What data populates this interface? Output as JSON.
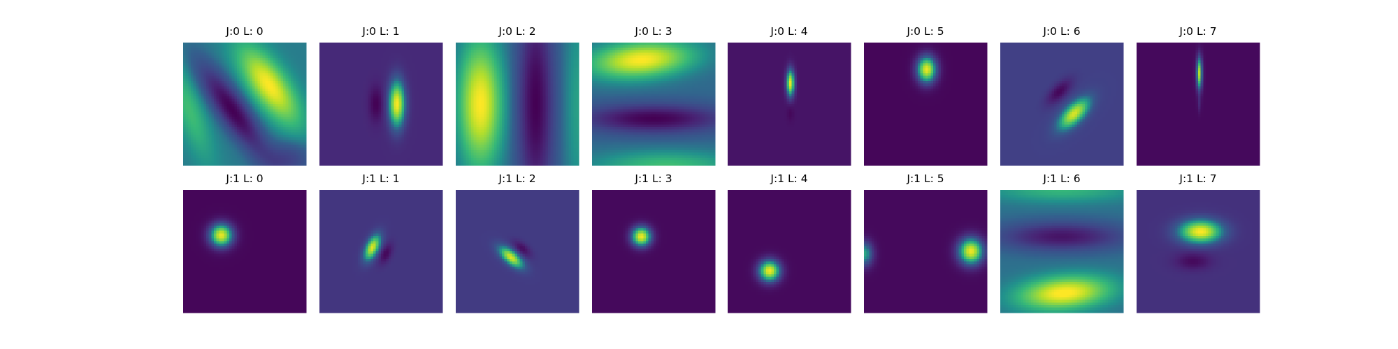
{
  "chart_data": {
    "type": "heatmap",
    "colormap": "viridis",
    "grid": {
      "rows": 2,
      "cols": 8
    },
    "panels": [
      {
        "title": "J:0 L: 0",
        "bg": 0.45,
        "blobs": [
          {
            "cx": 0.7,
            "cy": 0.35,
            "sx": 0.1,
            "sy": 0.25,
            "angle": -35,
            "amp": 0.55
          },
          {
            "cx": 0.4,
            "cy": 0.55,
            "sx": 0.08,
            "sy": 0.3,
            "angle": -35,
            "amp": -0.45
          },
          {
            "cx": 0.05,
            "cy": 0.55,
            "sx": 0.08,
            "sy": 0.3,
            "angle": -20,
            "amp": 0.2
          },
          {
            "cx": 0.85,
            "cy": 0.95,
            "sx": 0.15,
            "sy": 0.1,
            "angle": 0,
            "amp": -0.2
          }
        ]
      },
      {
        "title": "J:0 L: 1",
        "bg": 0.15,
        "blobs": [
          {
            "cx": 0.63,
            "cy": 0.5,
            "sx": 0.045,
            "sy": 0.13,
            "angle": 0,
            "amp": 0.85
          },
          {
            "cx": 0.46,
            "cy": 0.5,
            "sx": 0.04,
            "sy": 0.1,
            "angle": 0,
            "amp": -0.15
          }
        ]
      },
      {
        "title": "J:0 L: 2",
        "bg": 0.4,
        "blobs": [
          {
            "cx": 0.2,
            "cy": 0.5,
            "sx": 0.12,
            "sy": 0.35,
            "angle": 0,
            "amp": 0.6
          },
          {
            "cx": 0.65,
            "cy": 0.5,
            "sx": 0.1,
            "sy": 0.6,
            "angle": 0,
            "amp": -0.4
          },
          {
            "cx": 1.0,
            "cy": 0.5,
            "sx": 0.08,
            "sy": 0.6,
            "angle": 0,
            "amp": 0.15
          }
        ]
      },
      {
        "title": "J:0 L: 3",
        "bg": 0.4,
        "blobs": [
          {
            "cx": 0.4,
            "cy": 0.14,
            "sx": 0.28,
            "sy": 0.1,
            "angle": -5,
            "amp": 0.6
          },
          {
            "cx": 0.5,
            "cy": 0.62,
            "sx": 0.4,
            "sy": 0.08,
            "angle": 0,
            "amp": -0.4
          },
          {
            "cx": 0.6,
            "cy": 1.0,
            "sx": 0.4,
            "sy": 0.08,
            "angle": 0,
            "amp": 0.25
          }
        ]
      },
      {
        "title": "J:0 L: 4",
        "bg": 0.07,
        "blobs": [
          {
            "cx": 0.51,
            "cy": 0.33,
            "sx": 0.022,
            "sy": 0.075,
            "angle": 0,
            "amp": 0.9
          },
          {
            "cx": 0.51,
            "cy": 0.57,
            "sx": 0.02,
            "sy": 0.05,
            "angle": 0,
            "amp": -0.05
          }
        ]
      },
      {
        "title": "J:0 L: 5",
        "bg": 0.02,
        "blobs": [
          {
            "cx": 0.51,
            "cy": 0.22,
            "sx": 0.055,
            "sy": 0.075,
            "angle": 0,
            "amp": 0.95
          }
        ]
      },
      {
        "title": "J:0 L: 6",
        "bg": 0.24,
        "blobs": [
          {
            "cx": 0.6,
            "cy": 0.58,
            "sx": 0.05,
            "sy": 0.11,
            "angle": 45,
            "amp": 0.7
          },
          {
            "cx": 0.48,
            "cy": 0.4,
            "sx": 0.04,
            "sy": 0.09,
            "angle": 45,
            "amp": -0.22
          }
        ]
      },
      {
        "title": "J:0 L: 7",
        "bg": 0.03,
        "blobs": [
          {
            "cx": 0.51,
            "cy": 0.25,
            "sx": 0.016,
            "sy": 0.09,
            "angle": 0,
            "amp": 0.85
          },
          {
            "cx": 0.51,
            "cy": 0.5,
            "sx": 0.01,
            "sy": 0.05,
            "angle": 0,
            "amp": 0.1
          }
        ]
      },
      {
        "title": "J:1 L: 0",
        "bg": 0.02,
        "blobs": [
          {
            "cx": 0.31,
            "cy": 0.37,
            "sx": 0.065,
            "sy": 0.065,
            "angle": 0,
            "amp": 0.95
          }
        ]
      },
      {
        "title": "J:1 L: 1",
        "bg": 0.2,
        "blobs": [
          {
            "cx": 0.43,
            "cy": 0.47,
            "sx": 0.035,
            "sy": 0.075,
            "angle": 25,
            "amp": 0.75
          },
          {
            "cx": 0.54,
            "cy": 0.52,
            "sx": 0.03,
            "sy": 0.06,
            "angle": 25,
            "amp": -0.18
          }
        ]
      },
      {
        "title": "J:1 L: 2",
        "bg": 0.22,
        "blobs": [
          {
            "cx": 0.45,
            "cy": 0.55,
            "sx": 0.035,
            "sy": 0.08,
            "angle": -50,
            "amp": 0.72
          },
          {
            "cx": 0.54,
            "cy": 0.48,
            "sx": 0.03,
            "sy": 0.06,
            "angle": -50,
            "amp": -0.18
          }
        ]
      },
      {
        "title": "J:1 L: 3",
        "bg": 0.03,
        "blobs": [
          {
            "cx": 0.4,
            "cy": 0.38,
            "sx": 0.055,
            "sy": 0.055,
            "angle": 0,
            "amp": 0.95
          }
        ]
      },
      {
        "title": "J:1 L: 4",
        "bg": 0.03,
        "blobs": [
          {
            "cx": 0.34,
            "cy": 0.66,
            "sx": 0.06,
            "sy": 0.06,
            "angle": 0,
            "amp": 0.95
          }
        ]
      },
      {
        "title": "J:1 L: 5",
        "bg": 0.03,
        "blobs": [
          {
            "cx": 0.87,
            "cy": 0.5,
            "sx": 0.07,
            "sy": 0.075,
            "angle": 0,
            "amp": 0.95
          },
          {
            "cx": 0.0,
            "cy": 0.52,
            "sx": 0.05,
            "sy": 0.07,
            "angle": 0,
            "amp": 0.55
          }
        ]
      },
      {
        "title": "J:1 L: 6",
        "bg": 0.42,
        "blobs": [
          {
            "cx": 0.52,
            "cy": 0.84,
            "sx": 0.25,
            "sy": 0.09,
            "angle": -5,
            "amp": 0.6
          },
          {
            "cx": 0.5,
            "cy": 0.38,
            "sx": 0.35,
            "sy": 0.08,
            "angle": 0,
            "amp": -0.35
          },
          {
            "cx": 0.5,
            "cy": 0.0,
            "sx": 0.4,
            "sy": 0.07,
            "angle": 0,
            "amp": 0.2
          }
        ]
      },
      {
        "title": "J:1 L: 7",
        "bg": 0.18,
        "blobs": [
          {
            "cx": 0.52,
            "cy": 0.34,
            "sx": 0.12,
            "sy": 0.065,
            "angle": 0,
            "amp": 0.82
          },
          {
            "cx": 0.46,
            "cy": 0.58,
            "sx": 0.1,
            "sy": 0.05,
            "angle": 0,
            "amp": -0.15
          }
        ]
      }
    ]
  }
}
